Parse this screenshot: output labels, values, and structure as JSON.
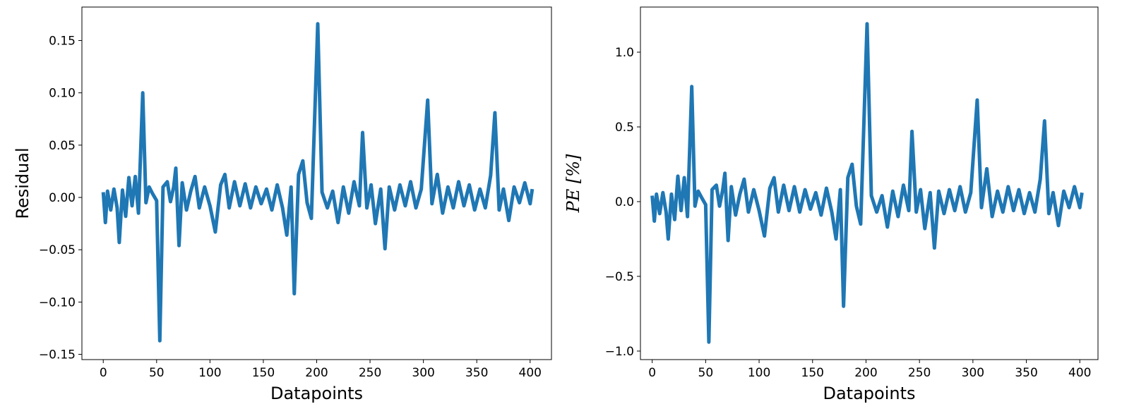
{
  "chart_data": [
    {
      "type": "line",
      "xlabel": "Datapoints",
      "ylabel": "Residual",
      "xlim": [
        -20,
        420
      ],
      "xticks": [
        0,
        50,
        100,
        150,
        200,
        250,
        300,
        350,
        400
      ],
      "ylim": [
        -0.155,
        0.182
      ],
      "yticks": [
        {
          "value": -0.15,
          "label": "−0.15"
        },
        {
          "value": -0.1,
          "label": "−0.10"
        },
        {
          "value": -0.05,
          "label": "−0.05"
        },
        {
          "value": 0,
          "label": "0.00"
        },
        {
          "value": 0.05,
          "label": "0.05"
        },
        {
          "value": 0.1,
          "label": "0.10"
        },
        {
          "value": 0.15,
          "label": "0.15"
        }
      ],
      "x": [
        0,
        2,
        4,
        7,
        10,
        13,
        15,
        18,
        21,
        24,
        27,
        30,
        33,
        37,
        40,
        43,
        46,
        50,
        53,
        56,
        60,
        63,
        66,
        68,
        71,
        74,
        78,
        82,
        86,
        90,
        95,
        100,
        105,
        110,
        114,
        118,
        123,
        128,
        133,
        138,
        143,
        148,
        153,
        158,
        163,
        168,
        172,
        176,
        179,
        183,
        187,
        191,
        195,
        201,
        205,
        210,
        215,
        220,
        225,
        230,
        235,
        240,
        243,
        247,
        251,
        255,
        260,
        264,
        268,
        273,
        278,
        283,
        288,
        293,
        298,
        304,
        308,
        313,
        318,
        323,
        328,
        333,
        338,
        343,
        348,
        353,
        358,
        363,
        367,
        371,
        375,
        380,
        385,
        390,
        395,
        400,
        402
      ],
      "series": [
        {
          "color": "#1f77b4",
          "values": [
            0.005,
            -0.024,
            0.006,
            -0.012,
            0.008,
            -0.01,
            -0.043,
            0.007,
            -0.018,
            0.019,
            -0.008,
            0.02,
            -0.015,
            0.1,
            -0.005,
            0.01,
            0.004,
            -0.003,
            -0.137,
            0.01,
            0.015,
            -0.004,
            0.01,
            0.028,
            -0.046,
            0.014,
            -0.012,
            0.006,
            0.02,
            -0.01,
            0.01,
            -0.008,
            -0.033,
            0.012,
            0.022,
            -0.01,
            0.015,
            -0.008,
            0.013,
            -0.01,
            0.01,
            -0.006,
            0.008,
            -0.012,
            0.012,
            -0.01,
            -0.036,
            0.01,
            -0.092,
            0.022,
            0.035,
            -0.005,
            -0.02,
            0.166,
            0.005,
            -0.01,
            0.006,
            -0.024,
            0.01,
            -0.015,
            0.015,
            -0.008,
            0.062,
            -0.01,
            0.012,
            -0.025,
            0.008,
            -0.049,
            0.01,
            -0.012,
            0.012,
            -0.008,
            0.015,
            -0.01,
            0.008,
            0.093,
            -0.006,
            0.022,
            -0.015,
            0.01,
            -0.01,
            0.015,
            -0.008,
            0.012,
            -0.012,
            0.008,
            -0.01,
            0.021,
            0.081,
            -0.012,
            0.008,
            -0.022,
            0.01,
            -0.005,
            0.014,
            -0.006,
            0.008
          ]
        }
      ]
    },
    {
      "type": "line",
      "xlabel": "Datapoints",
      "ylabel": "PE [%]",
      "xlim": [
        -11,
        417
      ],
      "xticks": [
        0,
        50,
        100,
        150,
        200,
        250,
        300,
        350,
        400
      ],
      "ylim": [
        -1.057,
        1.302
      ],
      "yticks": [
        {
          "value": -1,
          "label": "−1.0"
        },
        {
          "value": -0.5,
          "label": "−0.5"
        },
        {
          "value": 0,
          "label": "0.0"
        },
        {
          "value": 0.5,
          "label": "0.5"
        },
        {
          "value": 1,
          "label": "1.0"
        }
      ],
      "x": [
        0,
        2,
        4,
        7,
        10,
        13,
        15,
        18,
        21,
        24,
        27,
        30,
        33,
        37,
        40,
        43,
        46,
        50,
        53,
        56,
        60,
        63,
        66,
        68,
        71,
        74,
        78,
        82,
        86,
        90,
        95,
        100,
        105,
        110,
        114,
        118,
        123,
        128,
        133,
        138,
        143,
        148,
        153,
        158,
        163,
        168,
        172,
        176,
        179,
        183,
        187,
        191,
        195,
        201,
        205,
        210,
        215,
        220,
        225,
        230,
        235,
        240,
        243,
        247,
        251,
        255,
        260,
        264,
        268,
        273,
        278,
        283,
        288,
        293,
        298,
        304,
        308,
        313,
        318,
        323,
        328,
        333,
        338,
        343,
        348,
        353,
        358,
        363,
        367,
        371,
        375,
        380,
        385,
        390,
        395,
        400,
        402
      ],
      "series": [
        {
          "color": "#1f77b4",
          "values": [
            0.04,
            -0.13,
            0.05,
            -0.08,
            0.06,
            -0.07,
            -0.25,
            0.05,
            -0.12,
            0.17,
            -0.06,
            0.16,
            -0.1,
            0.77,
            -0.03,
            0.07,
            0.03,
            -0.02,
            -0.94,
            0.08,
            0.11,
            -0.03,
            0.08,
            0.19,
            -0.26,
            0.1,
            -0.09,
            0.05,
            0.15,
            -0.07,
            0.08,
            -0.06,
            -0.23,
            0.09,
            0.16,
            -0.07,
            0.11,
            -0.06,
            0.1,
            -0.07,
            0.08,
            -0.05,
            0.06,
            -0.09,
            0.09,
            -0.07,
            -0.25,
            0.08,
            -0.7,
            0.16,
            0.25,
            -0.03,
            -0.15,
            1.19,
            0.04,
            -0.07,
            0.04,
            -0.17,
            0.07,
            -0.1,
            0.11,
            -0.06,
            0.47,
            -0.07,
            0.08,
            -0.18,
            0.06,
            -0.31,
            0.07,
            -0.08,
            0.08,
            -0.06,
            0.1,
            -0.07,
            0.06,
            0.68,
            -0.04,
            0.22,
            -0.1,
            0.07,
            -0.07,
            0.1,
            -0.06,
            0.08,
            -0.08,
            0.06,
            -0.07,
            0.15,
            0.54,
            -0.08,
            0.06,
            -0.16,
            0.07,
            -0.04,
            0.1,
            -0.04,
            0.06
          ]
        }
      ]
    }
  ]
}
